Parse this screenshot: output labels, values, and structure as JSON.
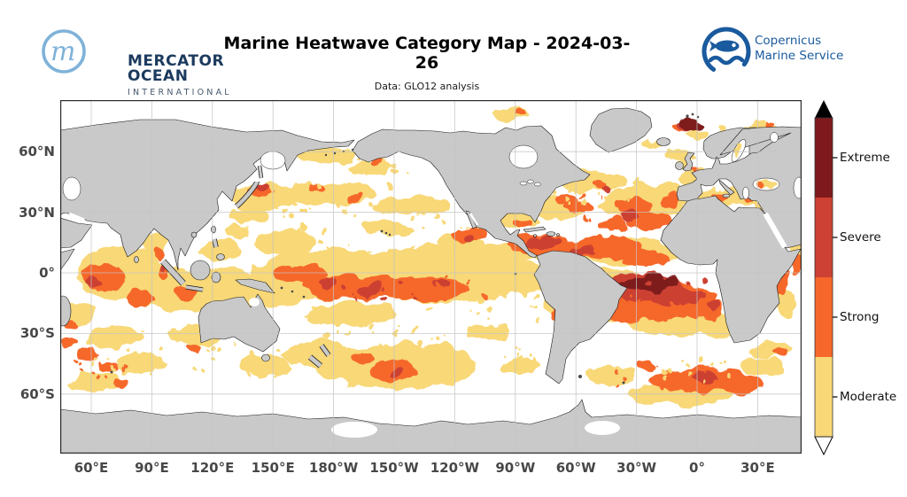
{
  "header": {
    "mercator_logo": {
      "monogram": "m",
      "line1": "MERCATOR",
      "line2": "OCEAN",
      "line3": "INTERNATIONAL"
    },
    "title": "Marine Heatwave Category Map - 2024-03-26",
    "subtitle": "Data: GLO12 analysis",
    "copernicus_logo": {
      "line1": "Copernicus",
      "line2": "Marine Service"
    }
  },
  "map": {
    "axes": {
      "x_ticks": [
        "60°E",
        "90°E",
        "120°E",
        "150°E",
        "180°W",
        "150°W",
        "120°W",
        "90°W",
        "60°W",
        "30°W",
        "0°",
        "30°E"
      ],
      "y_ticks": [
        "60°N",
        "30°N",
        "0°",
        "30°S",
        "60°S"
      ]
    },
    "legend": {
      "labels": [
        "Extreme",
        "Severe",
        "Strong",
        "Moderate"
      ],
      "colors": {
        "extreme": "#7e1a1e",
        "severe": "#cc4133",
        "strong": "#f6672b",
        "moderate": "#f8d877"
      }
    },
    "land_color": "#c9c9c9",
    "ocean_color": "#ffffff",
    "coast_color": "#1a1a1a",
    "grid_color": "#c4c4c4"
  }
}
